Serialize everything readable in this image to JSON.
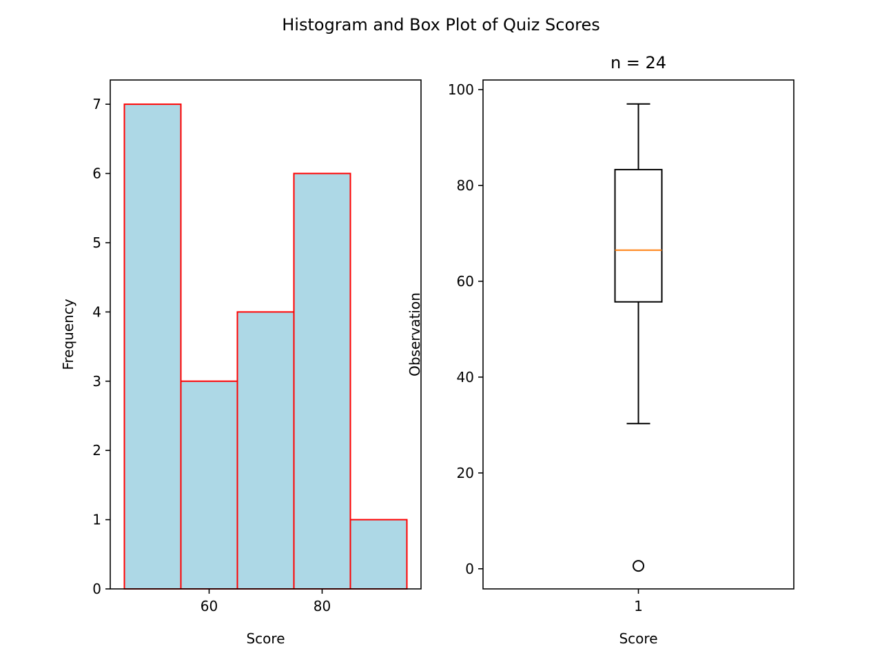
{
  "figure": {
    "suptitle": "Histogram and Box Plot of Quiz Scores"
  },
  "chart_data": [
    {
      "type": "bar",
      "subtype": "histogram",
      "title": "",
      "xlabel": "Score",
      "ylabel": "Frequency",
      "bins": [
        {
          "start": 45,
          "end": 55,
          "count": 7
        },
        {
          "start": 55,
          "end": 65,
          "count": 3
        },
        {
          "start": 65,
          "end": 75,
          "count": 4
        },
        {
          "start": 75,
          "end": 85,
          "count": 6
        },
        {
          "start": 85,
          "end": 95,
          "count": 1
        }
      ],
      "xlim": [
        42.5,
        97.5
      ],
      "ylim": [
        0,
        7.35
      ],
      "xticks": [
        60,
        80
      ],
      "yticks": [
        0,
        1,
        2,
        3,
        4,
        5,
        6,
        7
      ],
      "bar_fill": "#add8e6",
      "bar_edge": "#ff0000",
      "grid": false
    },
    {
      "type": "box",
      "title": "n = 24",
      "xlabel": "Score",
      "ylabel": "Observation",
      "category": "1",
      "whisker_low": 30.3,
      "q1": 55.7,
      "median": 66.5,
      "q3": 83.3,
      "whisker_high": 97,
      "outliers": [
        0.6
      ],
      "xlim": [
        0.5,
        1.5
      ],
      "ylim": [
        -4.2,
        102
      ],
      "yticks": [
        0,
        20,
        40,
        60,
        80,
        100
      ],
      "median_color": "#ff7f0e",
      "grid": false
    }
  ]
}
